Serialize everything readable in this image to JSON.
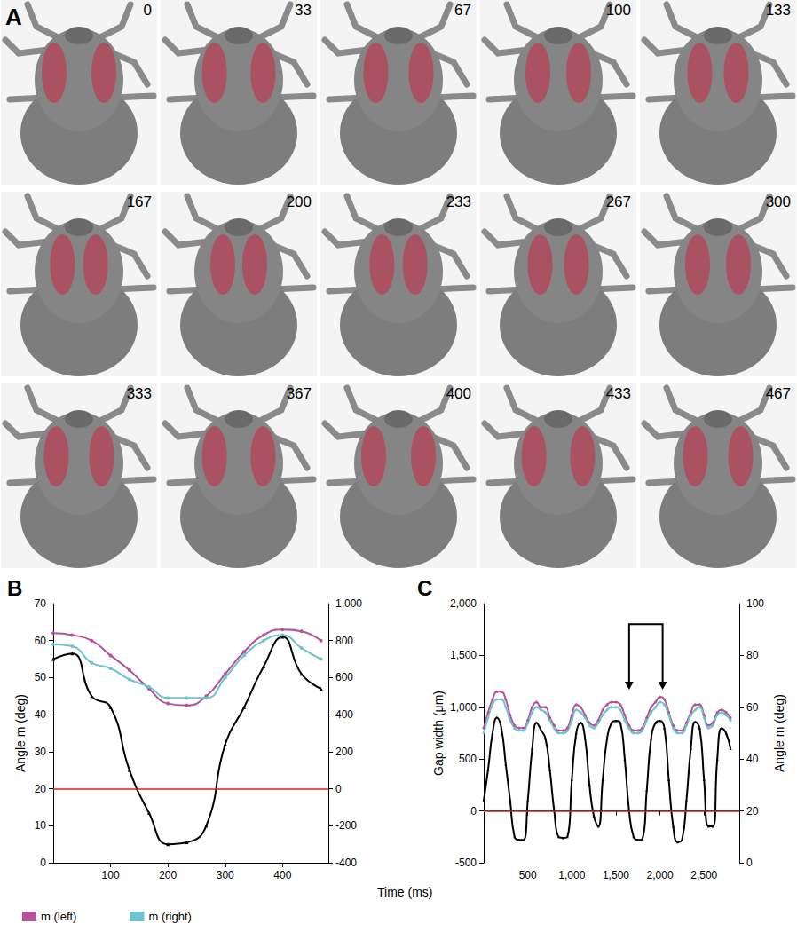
{
  "panel_A": {
    "label": "A",
    "frame_times_ms": [
      0,
      33,
      67,
      100,
      133,
      167,
      200,
      233,
      267,
      300,
      333,
      367,
      400,
      433,
      467
    ]
  },
  "shared_x_label": "Time (ms)",
  "chart_data": [
    {
      "panel": "B",
      "type": "line",
      "y_label": "Angle m (deg)",
      "x": [
        0,
        33,
        67,
        100,
        133,
        167,
        200,
        233,
        267,
        300,
        333,
        367,
        400,
        433,
        467
      ],
      "xlim": [
        0,
        480
      ],
      "xticks": [
        100,
        200,
        300,
        400
      ],
      "ylim": [
        0,
        70
      ],
      "yticks": [
        0,
        10,
        20,
        30,
        40,
        50,
        60,
        70
      ],
      "y2lim": [
        -400,
        1000
      ],
      "y2ticks": [
        -400,
        -200,
        0,
        200,
        400,
        600,
        800,
        1000
      ],
      "legend": "bottom left",
      "grid": false,
      "reference_line": {
        "value": 0,
        "axis": "y2",
        "color": "#e01e1e"
      },
      "series": [
        {
          "name": "m (left)",
          "color": "#b5529a",
          "marker": "circle",
          "values": [
            62,
            61.5,
            60,
            56,
            52,
            47,
            43,
            42.5,
            45,
            51,
            57,
            61.5,
            63,
            62.5,
            60
          ]
        },
        {
          "name": "m (right)",
          "color": "#6cc4cc",
          "marker": "circle",
          "values": [
            59,
            58.5,
            54,
            52.5,
            49.5,
            47.5,
            44.5,
            44.5,
            44.5,
            50,
            56,
            60,
            61.5,
            58,
            55
          ]
        },
        {
          "color": "#000000",
          "marker": "triangle",
          "axis": "y2",
          "values": [
            700,
            730,
            500,
            440,
            100,
            -130,
            -300,
            -290,
            -200,
            240,
            440,
            660,
            820,
            620,
            540
          ]
        }
      ]
    },
    {
      "panel": "C",
      "type": "line",
      "y_label": "Gap width (μm)",
      "y2_label": "Angle m (deg)",
      "x": [
        0,
        50,
        100,
        150,
        200,
        250,
        300,
        350,
        400,
        450,
        500,
        550,
        600,
        650,
        700,
        750,
        800,
        850,
        900,
        950,
        1000,
        1050,
        1100,
        1150,
        1200,
        1250,
        1300,
        1350,
        1400,
        1450,
        1500,
        1550,
        1600,
        1650,
        1700,
        1750,
        1800,
        1850,
        1900,
        1950,
        2000,
        2050,
        2100,
        2150,
        2200,
        2250,
        2300,
        2350,
        2400,
        2450,
        2500,
        2550,
        2600,
        2650,
        2700,
        2750,
        2800
      ],
      "xlim": [
        0,
        2900
      ],
      "xticks": [
        500,
        1000,
        1500,
        2000,
        2500
      ],
      "ylim": [
        -500,
        2000
      ],
      "yticks": [
        -500,
        0,
        500,
        1000,
        1500,
        2000
      ],
      "y2lim": [
        0,
        100
      ],
      "y2ticks": [
        0,
        20,
        40,
        60,
        80,
        100
      ],
      "grid": false,
      "reference_line": {
        "value": 0,
        "axis": "y",
        "color": "#e01e1e"
      },
      "bracket": {
        "x": [
          1650,
          2030
        ],
        "y": [
          1800,
          1170
        ]
      },
      "series": [
        {
          "name": "m (left)",
          "color": "#b5529a",
          "marker": "circle",
          "axis": "y2",
          "values": [
            52,
            58,
            63,
            66,
            66,
            63,
            57,
            53,
            52,
            52,
            55,
            60,
            62,
            60,
            60,
            56,
            53,
            51,
            51,
            52,
            57,
            61,
            60,
            57,
            54,
            53,
            55,
            59,
            61,
            62,
            62,
            61,
            57,
            53,
            51,
            51,
            52,
            56,
            60,
            62,
            64,
            63,
            58,
            53,
            51,
            51,
            54,
            58,
            61,
            61,
            57,
            53,
            54,
            58,
            59,
            58,
            56
          ]
        },
        {
          "name": "m (right)",
          "color": "#6cc4cc",
          "marker": "circle",
          "axis": "y2",
          "values": [
            50,
            56,
            61,
            63,
            63,
            60,
            55,
            52,
            51,
            51,
            54,
            58,
            60,
            59,
            58,
            55,
            52,
            50,
            50,
            51,
            55,
            59,
            58,
            56,
            53,
            52,
            54,
            57,
            59,
            60,
            60,
            59,
            55,
            52,
            50,
            50,
            51,
            55,
            58,
            60,
            62,
            61,
            57,
            52,
            50,
            50,
            53,
            57,
            59,
            60,
            56,
            52,
            53,
            57,
            58,
            57,
            55
          ]
        },
        {
          "color": "#000000",
          "marker": "triangle",
          "values": [
            100,
            400,
            750,
            900,
            800,
            450,
            100,
            -250,
            -280,
            -280,
            100,
            600,
            850,
            780,
            700,
            400,
            0,
            -250,
            -260,
            -250,
            300,
            750,
            850,
            700,
            250,
            -50,
            -150,
            300,
            700,
            850,
            870,
            850,
            500,
            0,
            -250,
            -280,
            -270,
            200,
            700,
            850,
            870,
            800,
            300,
            -150,
            -300,
            -280,
            100,
            600,
            860,
            800,
            300,
            -150,
            -150,
            500,
            800,
            750,
            600
          ]
        }
      ]
    }
  ]
}
